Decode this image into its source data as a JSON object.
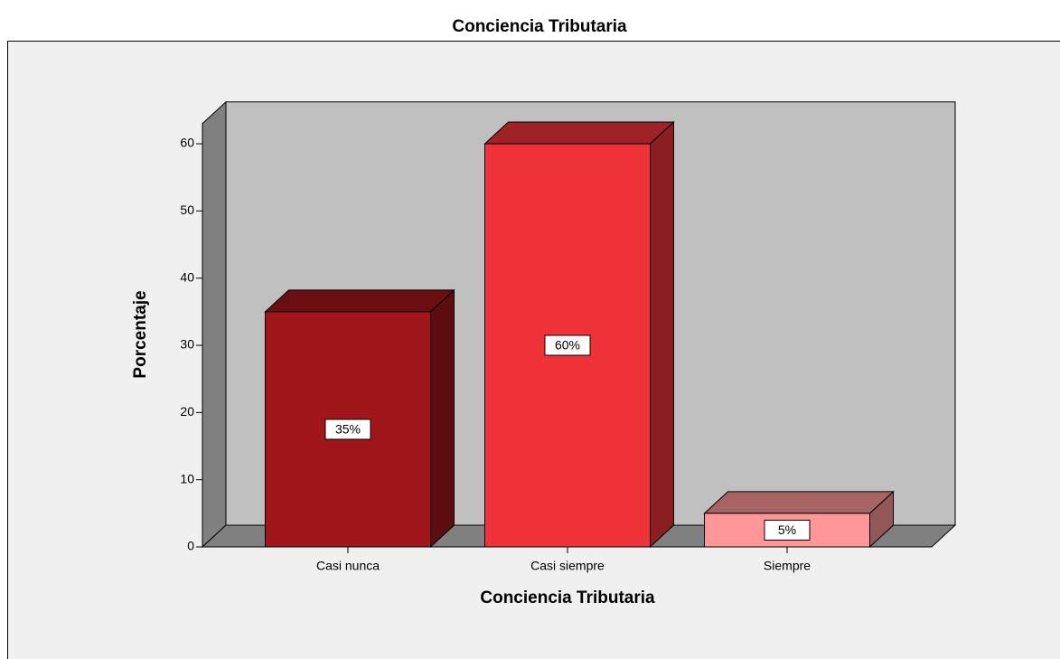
{
  "chart_data": {
    "type": "bar3d",
    "title": "Conciencia Tributaria",
    "x_label": "Conciencia Tributaria",
    "y_label": "Porcentaje",
    "categories": [
      "Casi nunca",
      "Casi siempre",
      "Siempre"
    ],
    "values": [
      35,
      60,
      5
    ],
    "value_labels": [
      "35%",
      "60%",
      "5%"
    ],
    "colors": [
      "#a0161a",
      "#ef3339",
      "#ff9698"
    ],
    "ylim": [
      0,
      63
    ],
    "yticks": [
      0,
      10,
      20,
      30,
      40,
      50,
      60
    ]
  }
}
